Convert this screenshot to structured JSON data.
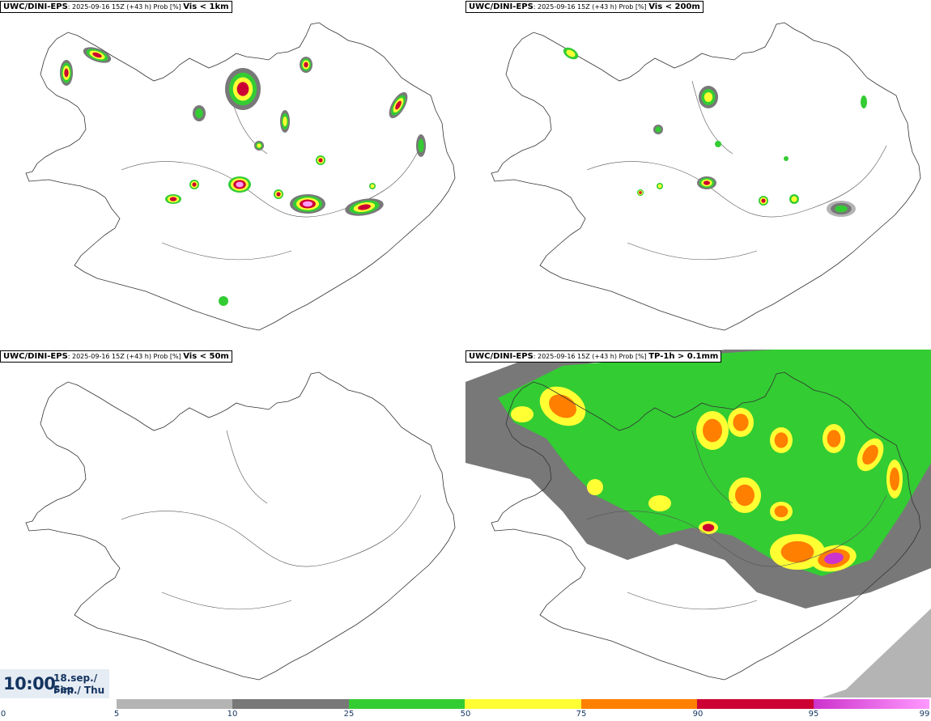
{
  "panels": [
    {
      "source": "UWC/DINI-EPS",
      "meta": ": 2025-09-16 15Z (+43 h) Prob [%] ",
      "variable": "Vis < 1km"
    },
    {
      "source": "UWC/DINI-EPS",
      "meta": ": 2025-09-16 15Z (+43 h) Prob [%] ",
      "variable": "Vis < 200m"
    },
    {
      "source": "UWC/DINI-EPS",
      "meta": ": 2025-09-16 15Z (+43 h) Prob [%] ",
      "variable": "Vis < 50m"
    },
    {
      "source": "UWC/DINI-EPS",
      "meta": ": 2025-09-16 15Z (+43 h) Prob [%] ",
      "variable": "TP-1h > 0.1mm"
    }
  ],
  "valid_time": {
    "time": "10:00",
    "date_line1": "18.sep./ Sep",
    "date_line2": "Fim./ Thu"
  },
  "legend": {
    "ticks": [
      "0",
      "5",
      "10",
      "25",
      "50",
      "75",
      "90",
      "95",
      "99"
    ],
    "colors": [
      "#ffffff",
      "#b4b4b4",
      "#787878",
      "#33cc33",
      "#ffff33",
      "#ff7f00",
      "#cc0033",
      "#cc33cc",
      "#ff99ff"
    ]
  }
}
